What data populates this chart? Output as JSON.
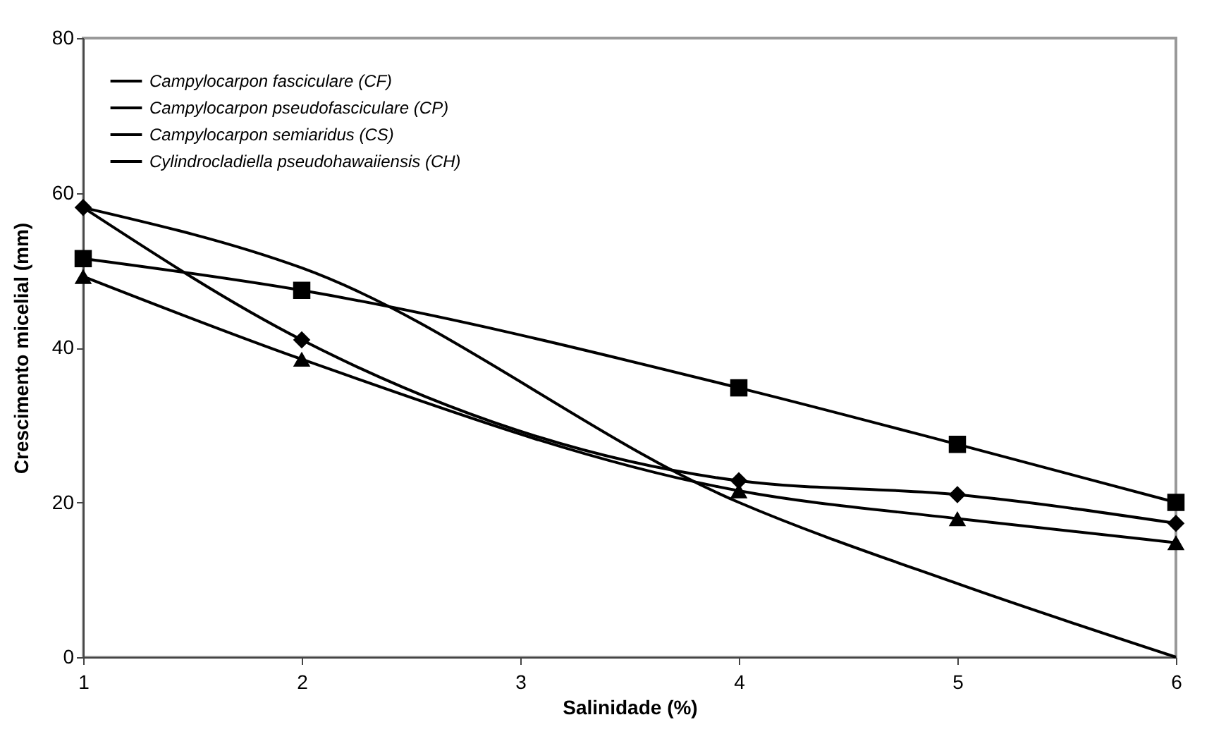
{
  "chart_data": {
    "type": "line",
    "xlabel": "Salinidade (%)",
    "ylabel": "Crescimento micelial (mm)",
    "x": [
      1,
      2,
      4,
      5,
      6
    ],
    "xlim": [
      1,
      6
    ],
    "xticks": [
      1,
      2,
      3,
      4,
      5,
      6
    ],
    "ylim": [
      0,
      80
    ],
    "yticks": [
      0,
      20,
      40,
      60,
      80
    ],
    "grid": false,
    "legend": "top left",
    "line_style": "solid",
    "series": [
      {
        "name": "Campylocarpon fasciculare (CF)",
        "color": "#000000",
        "marker": "triangle",
        "values": [
          49.2,
          38.5,
          21.5,
          17.9,
          14.8
        ]
      },
      {
        "name": "Campylocarpon pseudofasciculare (CP)",
        "color": "#000000",
        "marker": "diamond",
        "values": [
          58.1,
          41,
          22.8,
          21,
          17.3
        ]
      },
      {
        "name": "Campylocarpon semiaridus (CS)",
        "color": "#000000",
        "marker": "square",
        "values": [
          51.5,
          47.4,
          34.8,
          27.5,
          20
        ]
      },
      {
        "name": "Cylindrocladiella pseudohawaiiensis (CH)",
        "color": "#000000",
        "marker": "none",
        "values": [
          58.1,
          50.3,
          20,
          9.5,
          0
        ]
      }
    ]
  }
}
